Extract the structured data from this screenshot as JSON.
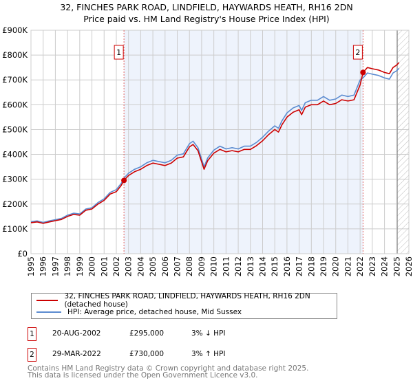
{
  "title_line1": "32, FINCHES PARK ROAD, LINDFIELD, HAYWARDS HEATH, RH16 2DN",
  "title_line2": "Price paid vs. HM Land Registry's House Price Index (HPI)",
  "chart_data": {
    "type": "line",
    "xlim": [
      1995,
      2026
    ],
    "ylim": [
      0,
      900000
    ],
    "x_ticks": [
      "1995",
      "1996",
      "1997",
      "1998",
      "1999",
      "2000",
      "2001",
      "2002",
      "2003",
      "2004",
      "2005",
      "2006",
      "2007",
      "2008",
      "2009",
      "2010",
      "2011",
      "2012",
      "2013",
      "2014",
      "2015",
      "2016",
      "2017",
      "2018",
      "2019",
      "2020",
      "2021",
      "2022",
      "2023",
      "2024",
      "2025",
      "2026"
    ],
    "y_ticks": [
      {
        "value": 0,
        "label": "£0"
      },
      {
        "value": 100000,
        "label": "£100K"
      },
      {
        "value": 200000,
        "label": "£200K"
      },
      {
        "value": 300000,
        "label": "£300K"
      },
      {
        "value": 400000,
        "label": "£400K"
      },
      {
        "value": 500000,
        "label": "£500K"
      },
      {
        "value": 600000,
        "label": "£600K"
      },
      {
        "value": 700000,
        "label": "£700K"
      },
      {
        "value": 800000,
        "label": "£800K"
      },
      {
        "value": 900000,
        "label": "£900K"
      }
    ],
    "grid": true,
    "highlight_range": [
      2002.63,
      2022.24
    ],
    "forecast_from": 2025.05,
    "series": [
      {
        "name": "32, FINCHES PARK ROAD, LINDFIELD, HAYWARDS HEATH, RH16 2DN (detached house)",
        "color": "#cc0000",
        "x": [
          1995,
          1995.5,
          1996,
          1996.5,
          1997,
          1997.5,
          1998,
          1998.5,
          1999,
          1999.5,
          2000,
          2000.5,
          2001,
          2001.5,
          2002,
          2002.4,
          2002.63,
          2003,
          2003.5,
          2004,
          2004.5,
          2005,
          2005.5,
          2006,
          2006.5,
          2007,
          2007.5,
          2008,
          2008.3,
          2008.7,
          2009,
          2009.2,
          2009.5,
          2010,
          2010.5,
          2011,
          2011.5,
          2012,
          2012.5,
          2013,
          2013.5,
          2014,
          2014.5,
          2015,
          2015.3,
          2015.6,
          2016,
          2016.5,
          2017,
          2017.2,
          2017.5,
          2018,
          2018.5,
          2019,
          2019.5,
          2020,
          2020.5,
          2021,
          2021.5,
          2022,
          2022.24,
          2022.6,
          2023,
          2023.5,
          2024,
          2024.4,
          2024.7,
          2025,
          2025.2
        ],
        "y": [
          125000,
          128000,
          122000,
          128000,
          133000,
          138000,
          150000,
          158000,
          155000,
          175000,
          180000,
          200000,
          215000,
          240000,
          250000,
          275000,
          295000,
          315000,
          330000,
          340000,
          355000,
          365000,
          360000,
          355000,
          365000,
          385000,
          390000,
          430000,
          440000,
          415000,
          370000,
          340000,
          375000,
          405000,
          420000,
          410000,
          415000,
          410000,
          420000,
          420000,
          435000,
          455000,
          480000,
          500000,
          490000,
          520000,
          550000,
          570000,
          580000,
          560000,
          590000,
          600000,
          600000,
          615000,
          600000,
          605000,
          620000,
          615000,
          620000,
          680000,
          730000,
          750000,
          745000,
          740000,
          730000,
          725000,
          750000,
          760000,
          770000
        ]
      },
      {
        "name": "HPI: Average price, detached house, Mid Sussex",
        "color": "#5b8bd0",
        "x": [
          1995,
          1995.5,
          1996,
          1996.5,
          1997,
          1997.5,
          1998,
          1998.5,
          1999,
          1999.5,
          2000,
          2000.5,
          2001,
          2001.5,
          2002,
          2002.4,
          2002.63,
          2003,
          2003.5,
          2004,
          2004.5,
          2005,
          2005.5,
          2006,
          2006.5,
          2007,
          2007.5,
          2008,
          2008.3,
          2008.7,
          2009,
          2009.2,
          2009.5,
          2010,
          2010.5,
          2011,
          2011.5,
          2012,
          2012.5,
          2013,
          2013.5,
          2014,
          2014.5,
          2015,
          2015.3,
          2015.6,
          2016,
          2016.5,
          2017,
          2017.2,
          2017.5,
          2018,
          2018.5,
          2019,
          2019.5,
          2020,
          2020.5,
          2021,
          2021.5,
          2022,
          2022.24,
          2022.6,
          2023,
          2023.5,
          2024,
          2024.4,
          2024.7,
          2025,
          2025.2
        ],
        "y": [
          129000,
          132000,
          126000,
          132000,
          137000,
          142000,
          155000,
          163000,
          160000,
          180000,
          185000,
          206000,
          221000,
          247000,
          258000,
          283000,
          304000,
          324000,
          340000,
          350000,
          366000,
          376000,
          371000,
          366000,
          376000,
          397000,
          402000,
          443000,
          453000,
          427000,
          381000,
          350000,
          386000,
          417000,
          433000,
          422000,
          427000,
          422000,
          433000,
          433000,
          448000,
          469000,
          494000,
          515000,
          505000,
          536000,
          567000,
          587000,
          597000,
          577000,
          608000,
          618000,
          618000,
          633000,
          618000,
          623000,
          639000,
          633000,
          639000,
          700000,
          708000,
          728000,
          723000,
          718000,
          708000,
          703000,
          728000,
          737000,
          747000
        ]
      }
    ],
    "annotations": [
      {
        "label": "1",
        "x": 2002.63,
        "y": 295000
      },
      {
        "label": "2",
        "x": 2022.24,
        "y": 730000
      }
    ]
  },
  "legend": {
    "property_label": "32, FINCHES PARK ROAD, LINDFIELD, HAYWARDS HEATH, RH16 2DN (detached house)",
    "hpi_label": "HPI: Average price, detached house, Mid Sussex"
  },
  "sales": [
    {
      "num": "1",
      "date": "20-AUG-2002",
      "price": "£295,000",
      "hpi": "3% ↓ HPI"
    },
    {
      "num": "2",
      "date": "29-MAR-2022",
      "price": "£730,000",
      "hpi": "3% ↑ HPI"
    }
  ],
  "footer": {
    "line1": "Contains HM Land Registry data © Crown copyright and database right 2025.",
    "line2": "This data is licensed under the Open Government Licence v3.0."
  }
}
